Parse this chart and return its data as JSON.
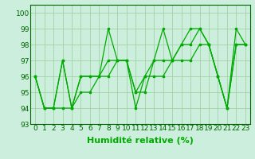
{
  "xlabel": "Humidité relative (%)",
  "ylabel_ticks": [
    "93",
    "94",
    "95",
    "96",
    "97",
    "98",
    "99",
    "100"
  ],
  "ylim": [
    93,
    100.5
  ],
  "xlim": [
    -0.5,
    23.5
  ],
  "xticks": [
    0,
    1,
    2,
    3,
    4,
    5,
    6,
    7,
    8,
    9,
    10,
    11,
    12,
    13,
    14,
    15,
    16,
    17,
    18,
    19,
    20,
    21,
    22,
    23
  ],
  "yticks": [
    93,
    94,
    95,
    96,
    97,
    98,
    99,
    100
  ],
  "line_color": "#00aa00",
  "bg_color": "#cceedd",
  "grid_color": "#99cc99",
  "lines": [
    [
      96,
      94,
      94,
      97,
      94,
      96,
      96,
      96,
      99,
      97,
      97,
      94,
      96,
      97,
      99,
      97,
      98,
      99,
      99,
      98,
      96,
      94,
      99,
      98
    ],
    [
      96,
      94,
      94,
      97,
      94,
      96,
      96,
      96,
      97,
      97,
      97,
      95,
      95,
      97,
      97,
      97,
      98,
      98,
      99,
      98,
      96,
      94,
      98,
      98
    ],
    [
      96,
      94,
      94,
      94,
      94,
      95,
      95,
      96,
      96,
      97,
      97,
      95,
      96,
      96,
      96,
      97,
      97,
      97,
      98,
      98,
      96,
      94,
      98,
      98
    ]
  ],
  "title_fontsize": 0,
  "xlabel_fontsize": 8,
  "tick_fontsize": 6.5,
  "marker": "s",
  "markersize": 2.0,
  "linewidth": 0.9
}
